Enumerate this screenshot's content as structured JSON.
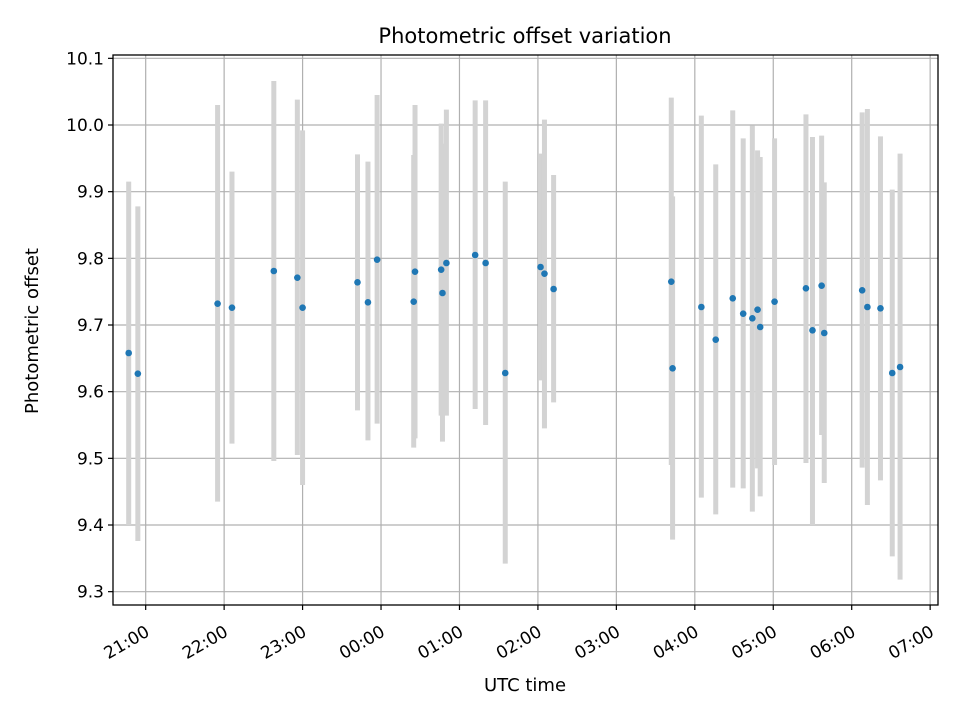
{
  "chart_data": {
    "type": "scatter",
    "title": "Photometric offset variation",
    "xlabel": "UTC time",
    "ylabel": "Photometric offset",
    "ylim": [
      9.28,
      10.105
    ],
    "xlim": [
      "20:35",
      "07:06"
    ],
    "grid": true,
    "colors": {
      "marker": "#1f77b4",
      "errorbar": "#d3d3d3",
      "grid": "#b0b0b0"
    },
    "x_ticks": [
      "21:00",
      "22:00",
      "23:00",
      "00:00",
      "01:00",
      "02:00",
      "03:00",
      "04:00",
      "05:00",
      "06:00",
      "07:00"
    ],
    "y_ticks": [
      "9.3",
      "9.4",
      "9.5",
      "9.6",
      "9.7",
      "9.8",
      "9.9",
      "10.0",
      "10.1"
    ],
    "points": [
      {
        "x": "20:47",
        "y": 9.658,
        "low": 9.4,
        "high": 9.915
      },
      {
        "x": "20:54",
        "y": 9.627,
        "low": 9.376,
        "high": 9.878
      },
      {
        "x": "21:55",
        "y": 9.732,
        "low": 9.435,
        "high": 10.03
      },
      {
        "x": "22:06",
        "y": 9.726,
        "low": 9.522,
        "high": 9.93
      },
      {
        "x": "22:38",
        "y": 9.781,
        "low": 9.496,
        "high": 10.066
      },
      {
        "x": "22:56",
        "y": 9.771,
        "low": 9.505,
        "high": 10.038
      },
      {
        "x": "23:00",
        "y": 9.726,
        "low": 9.46,
        "high": 9.992
      },
      {
        "x": "23:42",
        "y": 9.764,
        "low": 9.572,
        "high": 9.956
      },
      {
        "x": "23:50",
        "y": 9.734,
        "low": 9.527,
        "high": 9.945
      },
      {
        "x": "23:57",
        "y": 9.798,
        "low": 9.552,
        "high": 10.045
      },
      {
        "x": "00:25",
        "y": 9.735,
        "low": 9.516,
        "high": 9.955
      },
      {
        "x": "00:26",
        "y": 9.78,
        "low": 9.53,
        "high": 10.03
      },
      {
        "x": "00:46",
        "y": 9.783,
        "low": 9.564,
        "high": 10.002
      },
      {
        "x": "00:47",
        "y": 9.748,
        "low": 9.525,
        "high": 9.972
      },
      {
        "x": "00:50",
        "y": 9.793,
        "low": 9.564,
        "high": 10.023
      },
      {
        "x": "01:12",
        "y": 9.805,
        "low": 9.574,
        "high": 10.037
      },
      {
        "x": "01:20",
        "y": 9.793,
        "low": 9.55,
        "high": 10.037
      },
      {
        "x": "01:35",
        "y": 9.628,
        "low": 9.342,
        "high": 9.915
      },
      {
        "x": "02:02",
        "y": 9.787,
        "low": 9.617,
        "high": 9.957
      },
      {
        "x": "02:05",
        "y": 9.777,
        "low": 9.545,
        "high": 10.008
      },
      {
        "x": "02:12",
        "y": 9.754,
        "low": 9.584,
        "high": 9.925
      },
      {
        "x": "03:42",
        "y": 9.765,
        "low": 9.49,
        "high": 10.041
      },
      {
        "x": "03:43",
        "y": 9.635,
        "low": 9.378,
        "high": 9.893
      },
      {
        "x": "04:05",
        "y": 9.727,
        "low": 9.441,
        "high": 10.014
      },
      {
        "x": "04:16",
        "y": 9.678,
        "low": 9.416,
        "high": 9.941
      },
      {
        "x": "04:29",
        "y": 9.74,
        "low": 9.456,
        "high": 10.022
      },
      {
        "x": "04:37",
        "y": 9.717,
        "low": 9.455,
        "high": 9.98
      },
      {
        "x": "04:44",
        "y": 9.71,
        "low": 9.42,
        "high": 9.999
      },
      {
        "x": "04:48",
        "y": 9.723,
        "low": 9.485,
        "high": 9.962
      },
      {
        "x": "04:50",
        "y": 9.697,
        "low": 9.443,
        "high": 9.952
      },
      {
        "x": "05:01",
        "y": 9.735,
        "low": 9.49,
        "high": 9.98
      },
      {
        "x": "05:25",
        "y": 9.755,
        "low": 9.493,
        "high": 10.016
      },
      {
        "x": "05:30",
        "y": 9.692,
        "low": 9.4,
        "high": 9.982
      },
      {
        "x": "05:37",
        "y": 9.759,
        "low": 9.535,
        "high": 9.984
      },
      {
        "x": "05:39",
        "y": 9.688,
        "low": 9.463,
        "high": 9.914
      },
      {
        "x": "06:08",
        "y": 9.752,
        "low": 9.486,
        "high": 10.019
      },
      {
        "x": "06:12",
        "y": 9.727,
        "low": 9.43,
        "high": 10.024
      },
      {
        "x": "06:22",
        "y": 9.725,
        "low": 9.467,
        "high": 9.983
      },
      {
        "x": "06:31",
        "y": 9.628,
        "low": 9.353,
        "high": 9.903
      },
      {
        "x": "06:37",
        "y": 9.637,
        "low": 9.318,
        "high": 9.957
      }
    ]
  }
}
